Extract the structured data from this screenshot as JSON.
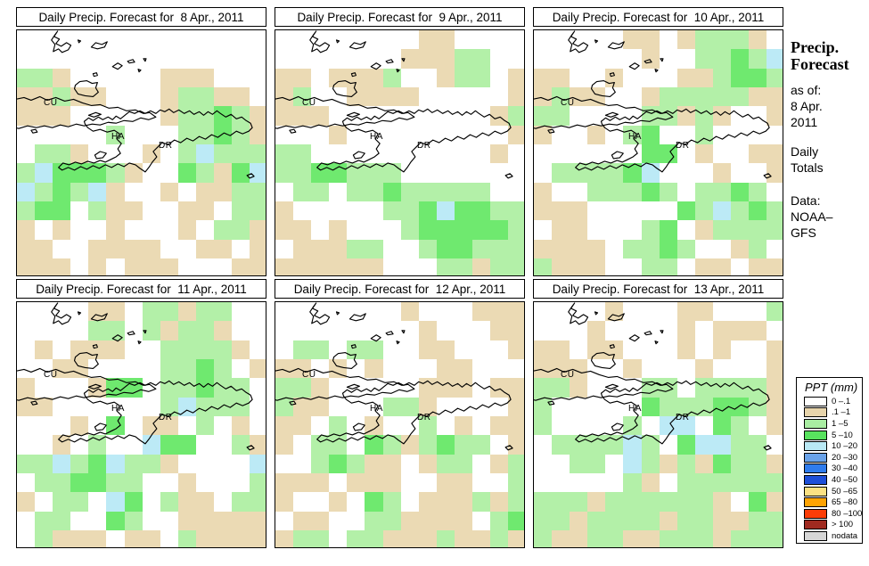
{
  "panels": [
    {
      "title": "Daily Precip. Forecast for  8 Apr., 2011",
      "grid": [
        "WWWWWWWWWWWWWW",
        "WWWWWWWWWWWWWW",
        "GGTWWWWWTTTWWW",
        "TTGTTWWWTGGTTW",
        "TTTWWWWWTGGDGT",
        "WWWWWGWWWGGDGT",
        "WGGTWWWTWGCGGG",
        "GCDDDGTWWDGTDC",
        "CGDGCTWWTWTTGG",
        "GDDWGTTWWTTWGG",
        "TWTWWTWWWTWGGT",
        "TTWWTTTTWWTTWT",
        "TTTWTWTTTWWWTT"
      ]
    },
    {
      "title": "Daily Precip. Forecast for  9 Apr., 2011",
      "grid": [
        "WWWWWWWWTTWWWW",
        "WWWWWWWTTTGGWW",
        "TTWTTTGWWTGGWT",
        "TGWWTTTTWWWWWT",
        "TTTWWWWWWWWWTG",
        "WWWTWWWWWWWWWT",
        "GGWWWWWWWWWWTW",
        "GGDDGGGWWWWWWW",
        "WGGWGGDGGGGGWW",
        "TWWWWWGGDCDDGG",
        "TTWTWWWGDDDDDG",
        "WTTTGGWWGDDGGG",
        "TTTTTTWWWGGTGG"
      ]
    },
    {
      "title": "Daily Precip. Forecast for  10 Apr., 2011",
      "grid": [
        "WWWWWTTWTGGGTW",
        "WWWWWWTWWGGDGC",
        "TTWWTWWWTTGDDG",
        "TGTTWWTGGGGGTT",
        "GGWWWWGGTGTWWT",
        "TWWTWGDWWGWWWW",
        "WWWWWWDDWTWWTT",
        "WGGGGDCWWWTWWT",
        "TWWGGGDGWGGDGW",
        "TTTWWWWWDGCGDG",
        "WTTWWWGDWTGGGG",
        "TTTTWGGDGWWTGW",
        "GTTTWWGGWTTWTT"
      ]
    },
    {
      "title": "Daily Precip. Forecast for  11 Apr., 2011",
      "grid": [
        "WWWWTTWGGTGGWW",
        "WWWWGGWGTGGTWW",
        "WTWTTTWWGGGGTW",
        "WWTTWWWWGGDGWT",
        "TWWWTDDWGGDGGW",
        "TTWWWWWWGCGGGW",
        "WWWTWDWTTWGWTW",
        "WWTWGWWCDDWWGT",
        "GGCGDCGGTWWWWC",
        "WGGDDGGWWTWWWG",
        "TWGGWCDWGTTWGG",
        "WGGWWDGWWTTTTT",
        "WGTTTWTTWGTTTT"
      ]
    },
    {
      "title": "Daily Precip. Forecast for  12 Apr., 2011",
      "grid": [
        "WWWWWWWTWWWTTT",
        "WWWWWWWWTWWWTT",
        "WGGWGGWWTTWWWT",
        "TTWTWTWWWTTWWW",
        "GGTWWWWWTTTWTT",
        "GTTWWWGGTWWWWT",
        "TTWGWTWWGWTWTT",
        "TWGGWDGTGDGGWT",
        "WWGDGTTWTGGWTG",
        "TTTWTTTWWTTWWG",
        "TWWTWDGWTTTGTG",
        "WTTWWGGTTTTWGD",
        "TGGWGGTTTGTTGT"
      ]
    },
    {
      "title": "Daily Precip. Forecast for  13 Apr., 2011",
      "grid": [
        "WWWWTWWWTTWWWG",
        "WWWTWWWWTWTTTW",
        "TTWTTWWWTWTWWT",
        "TTTWWTWWWTWWWT",
        "GGTWWWGGWGGGGT",
        "GWWWWWDGGGDDGT",
        "GWWWWGWCCWDGWT",
        "WGGGGCGWDCCGGW",
        "WWGGWCGTGTDGGT",
        "WWWWWGTWGGGGGG",
        "GGGTGGGGGGTWDT",
        "GGTGGGGTGGTTGG",
        "GTTGGTTGGGTGGG"
      ]
    }
  ],
  "palette": {
    "W": "#ffffff",
    "T": "#ebdab4",
    "G": "#b3f0a8",
    "D": "#6fe96f",
    "C": "#bceaf6"
  },
  "map_labels": {
    "cuba": "CU",
    "haiti": "HA",
    "dominican_republic": "DR"
  },
  "sidebar": {
    "title_line1": "Precip.",
    "title_line2": "Forecast",
    "as_of_label": "as of:",
    "as_of_date_line1": "8 Apr.",
    "as_of_date_line2": "2011",
    "totals_line1": "Daily",
    "totals_line2": "Totals",
    "data_label": "Data:",
    "data_source_line1": "NOAA–",
    "data_source_line2": "GFS"
  },
  "legend": {
    "title": "PPT (mm)",
    "entries": [
      {
        "label": "0 –.1",
        "color": "#ffffff"
      },
      {
        "label": ".1 –1",
        "color": "#e7d4ab"
      },
      {
        "label": "1 –5",
        "color": "#a9eda2"
      },
      {
        "label": "5 –10",
        "color": "#58e35e"
      },
      {
        "label": "10 –20",
        "color": "#b9e9f5"
      },
      {
        "label": "20 –30",
        "color": "#6aa3ea"
      },
      {
        "label": "30 –40",
        "color": "#2f7ced"
      },
      {
        "label": "40 –50",
        "color": "#1e4fd8"
      },
      {
        "label": "50 –65",
        "color": "#fce183"
      },
      {
        "label": "65 –80",
        "color": "#ffa303"
      },
      {
        "label": "80 –100",
        "color": "#fc3d07"
      },
      {
        "label": "> 100",
        "color": "#a02a20"
      },
      {
        "label": "nodata",
        "color": "#d6d6d6"
      }
    ]
  }
}
